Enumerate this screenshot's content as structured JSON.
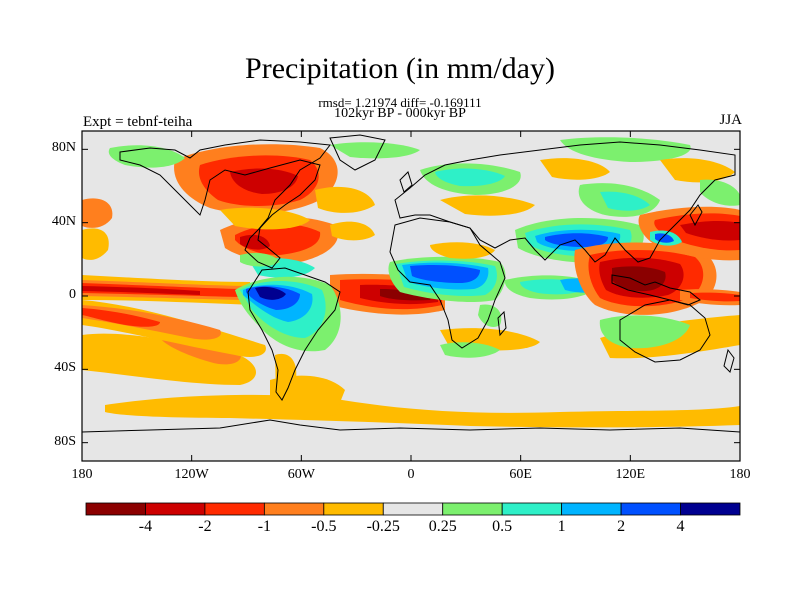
{
  "title": "Precipitation (in mm/day)",
  "stats_line": "rmsd= 1.21974 diff= -0.169111",
  "period_line": "102kyr BP - 000kyr BP",
  "experiment_label": "Expt = tebnf-teiha",
  "season_label": "JJA",
  "map": {
    "projection": "cylindrical-equidistant",
    "lon_range": [
      -180,
      180
    ],
    "lat_range": [
      -90,
      90
    ],
    "y_ticks": [
      {
        "label": "80N",
        "lat": 80
      },
      {
        "label": "40N",
        "lat": 40
      },
      {
        "label": "0",
        "lat": 0
      },
      {
        "label": "40S",
        "lat": -40
      },
      {
        "label": "80S",
        "lat": -80
      }
    ],
    "x_ticks": [
      {
        "label": "180",
        "lon": -180
      },
      {
        "label": "120W",
        "lon": -120
      },
      {
        "label": "60W",
        "lon": -60
      },
      {
        "label": "0",
        "lon": 0
      },
      {
        "label": "60E",
        "lon": 60
      },
      {
        "label": "120E",
        "lon": 120
      },
      {
        "label": "180",
        "lon": 180
      }
    ],
    "background_color": "#e6e6e6"
  },
  "colorbar": {
    "colors": [
      "#8b0000",
      "#cd0000",
      "#ff2a00",
      "#ff7f1e",
      "#ffbb00",
      "#e6e6e6",
      "#7cf06e",
      "#2ef0c8",
      "#00b4ff",
      "#0050ff",
      "#000090"
    ],
    "labels": [
      "-4",
      "-2",
      "-1",
      "-0.5",
      "-0.25",
      "0.25",
      "0.5",
      "1",
      "2",
      "4"
    ]
  }
}
